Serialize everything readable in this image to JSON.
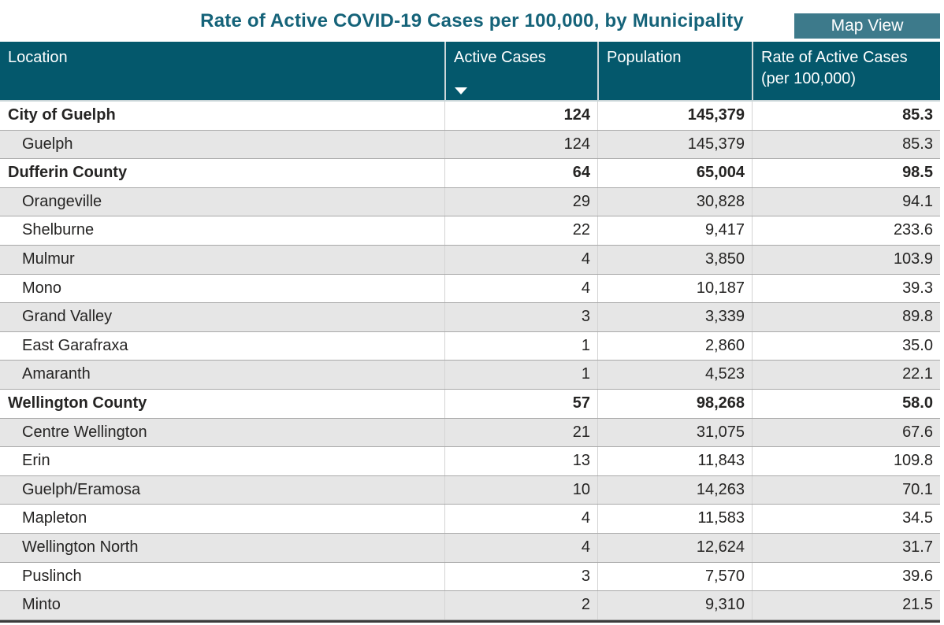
{
  "title": "Rate of Active COVID-19 Cases per 100,000, by Municipality",
  "map_view": {
    "label": "Map View"
  },
  "colors": {
    "header_background": "#04586c",
    "button_background": "#3d7a8b",
    "title_text": "#156379",
    "row_stripe": "#e6e6e6",
    "body_text": "#252423"
  },
  "table": {
    "columns": [
      {
        "label": "Location"
      },
      {
        "label": "Active Cases",
        "sort": "descending"
      },
      {
        "label": "Population"
      },
      {
        "label": "Rate of Active Cases",
        "label_line2": "(per 100,000)"
      }
    ],
    "rows": [
      {
        "location": "City of Guelph",
        "active_cases": "124",
        "population": "145,379",
        "rate": "85.3",
        "group": true
      },
      {
        "location": "Guelph",
        "active_cases": "124",
        "population": "145,379",
        "rate": "85.3",
        "group": false
      },
      {
        "location": "Dufferin County",
        "active_cases": "64",
        "population": "65,004",
        "rate": "98.5",
        "group": true
      },
      {
        "location": "Orangeville",
        "active_cases": "29",
        "population": "30,828",
        "rate": "94.1",
        "group": false
      },
      {
        "location": "Shelburne",
        "active_cases": "22",
        "population": "9,417",
        "rate": "233.6",
        "group": false
      },
      {
        "location": "Mulmur",
        "active_cases": "4",
        "population": "3,850",
        "rate": "103.9",
        "group": false
      },
      {
        "location": "Mono",
        "active_cases": "4",
        "population": "10,187",
        "rate": "39.3",
        "group": false
      },
      {
        "location": "Grand Valley",
        "active_cases": "3",
        "population": "3,339",
        "rate": "89.8",
        "group": false
      },
      {
        "location": "East Garafraxa",
        "active_cases": "1",
        "population": "2,860",
        "rate": "35.0",
        "group": false
      },
      {
        "location": "Amaranth",
        "active_cases": "1",
        "population": "4,523",
        "rate": "22.1",
        "group": false
      },
      {
        "location": "Wellington County",
        "active_cases": "57",
        "population": "98,268",
        "rate": "58.0",
        "group": true
      },
      {
        "location": "Centre Wellington",
        "active_cases": "21",
        "population": "31,075",
        "rate": "67.6",
        "group": false
      },
      {
        "location": "Erin",
        "active_cases": "13",
        "population": "11,843",
        "rate": "109.8",
        "group": false
      },
      {
        "location": "Guelph/Eramosa",
        "active_cases": "10",
        "population": "14,263",
        "rate": "70.1",
        "group": false
      },
      {
        "location": "Mapleton",
        "active_cases": "4",
        "population": "11,583",
        "rate": "34.5",
        "group": false
      },
      {
        "location": "Wellington North",
        "active_cases": "4",
        "population": "12,624",
        "rate": "31.7",
        "group": false
      },
      {
        "location": "Puslinch",
        "active_cases": "3",
        "population": "7,570",
        "rate": "39.6",
        "group": false
      },
      {
        "location": "Minto",
        "active_cases": "2",
        "population": "9,310",
        "rate": "21.5",
        "group": false
      }
    ]
  },
  "chart_data": {
    "type": "table",
    "title": "Rate of Active COVID-19 Cases per 100,000, by Municipality",
    "columns": [
      "Location",
      "Active Cases",
      "Population",
      "Rate of Active Cases (per 100,000)"
    ],
    "rows": [
      [
        "City of Guelph",
        124,
        145379,
        85.3
      ],
      [
        "Guelph",
        124,
        145379,
        85.3
      ],
      [
        "Dufferin County",
        64,
        65004,
        98.5
      ],
      [
        "Orangeville",
        29,
        30828,
        94.1
      ],
      [
        "Shelburne",
        22,
        9417,
        233.6
      ],
      [
        "Mulmur",
        4,
        3850,
        103.9
      ],
      [
        "Mono",
        4,
        10187,
        39.3
      ],
      [
        "Grand Valley",
        3,
        3339,
        89.8
      ],
      [
        "East Garafraxa",
        1,
        2860,
        35.0
      ],
      [
        "Amaranth",
        1,
        4523,
        22.1
      ],
      [
        "Wellington County",
        57,
        98268,
        58.0
      ],
      [
        "Centre Wellington",
        21,
        31075,
        67.6
      ],
      [
        "Erin",
        13,
        11843,
        109.8
      ],
      [
        "Guelph/Eramosa",
        10,
        14263,
        70.1
      ],
      [
        "Mapleton",
        4,
        11583,
        34.5
      ],
      [
        "Wellington North",
        4,
        12624,
        31.7
      ],
      [
        "Puslinch",
        3,
        7570,
        39.6
      ],
      [
        "Minto",
        2,
        9310,
        21.5
      ]
    ],
    "group_rows": [
      "City of Guelph",
      "Dufferin County",
      "Wellington County"
    ],
    "sort": {
      "column": "Active Cases",
      "direction": "descending"
    },
    "legend_position": "none",
    "grid": true
  }
}
